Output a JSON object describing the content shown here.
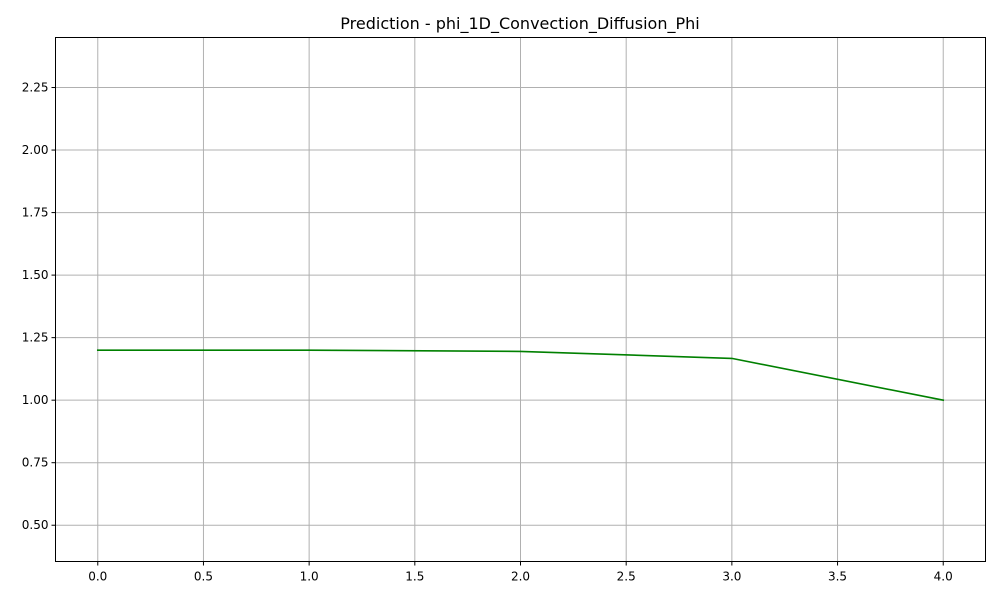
{
  "chart_data": {
    "type": "line",
    "title": "Prediction - phi_1D_Convection_Diffusion_Phi",
    "xlabel": "",
    "ylabel": "",
    "xlim": [
      -0.2,
      4.2
    ],
    "ylim": [
      0.355,
      2.45
    ],
    "x_ticks": [
      0.0,
      0.5,
      1.0,
      1.5,
      2.0,
      2.5,
      3.0,
      3.5,
      4.0
    ],
    "x_tick_labels": [
      "0.0",
      "0.5",
      "1.0",
      "1.5",
      "2.0",
      "2.5",
      "3.0",
      "3.5",
      "4.0"
    ],
    "y_ticks": [
      0.5,
      0.75,
      1.0,
      1.25,
      1.5,
      1.75,
      2.0,
      2.25
    ],
    "y_tick_labels": [
      "0.50",
      "0.75",
      "1.00",
      "1.25",
      "1.50",
      "1.75",
      "2.00",
      "2.25"
    ],
    "grid": true,
    "series": [
      {
        "color": "#008000",
        "x": [
          0,
          1,
          2,
          3,
          4
        ],
        "y": [
          1.2,
          1.2,
          1.195,
          1.167,
          1.0
        ]
      }
    ]
  }
}
